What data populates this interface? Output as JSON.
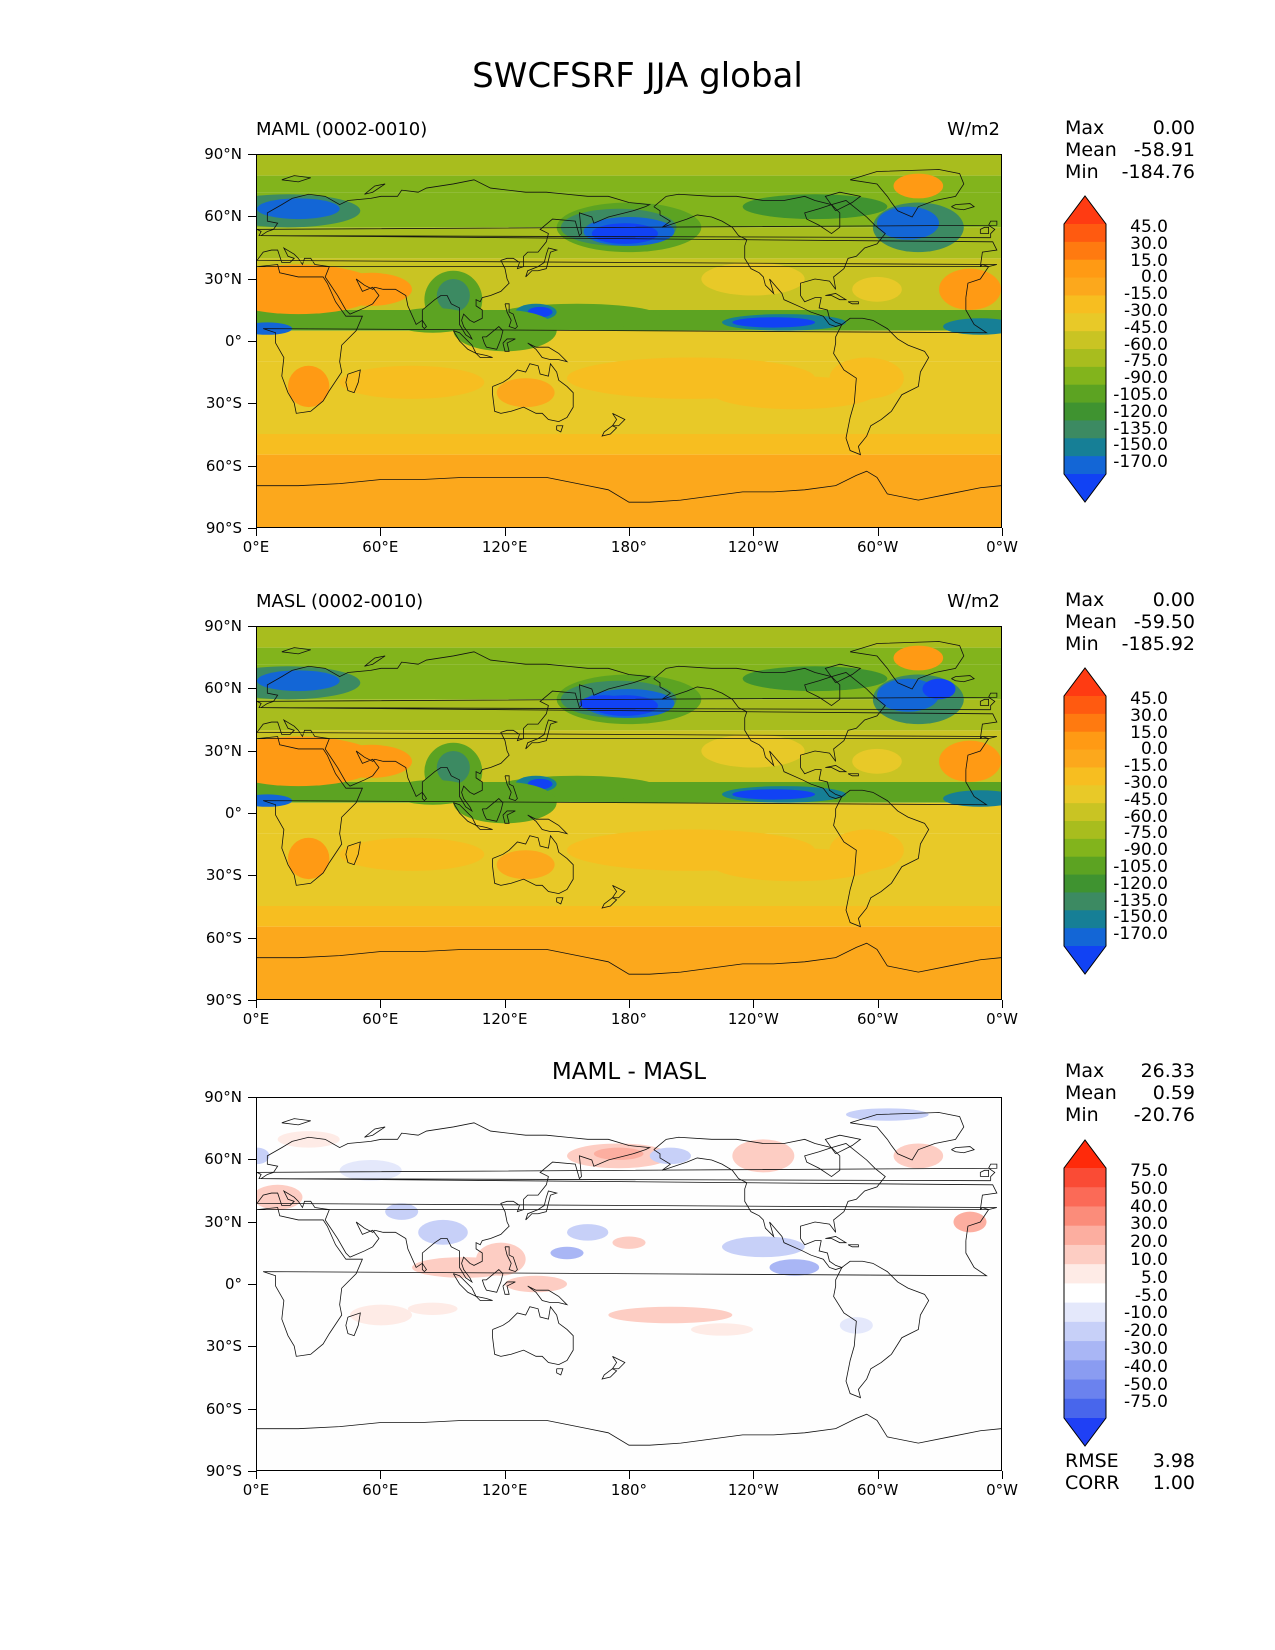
{
  "title": "SWCFSRF JJA global",
  "lat_ticks": [
    "90°N",
    "60°N",
    "30°N",
    "0°",
    "30°S",
    "60°S",
    "90°S"
  ],
  "lon_ticks": [
    "0°E",
    "60°E",
    "120°E",
    "180°",
    "120°W",
    "60°W",
    "0°W"
  ],
  "panels": [
    {
      "left_title": "MAML (0002-0010)",
      "right_title": "W/m2",
      "center_title": "",
      "stats": [
        {
          "label": "Max",
          "value": "0.00"
        },
        {
          "label": "Mean",
          "value": "-58.91"
        },
        {
          "label": "Min",
          "value": "-184.76"
        }
      ]
    },
    {
      "left_title": "MASL (0002-0010)",
      "right_title": "W/m2",
      "center_title": "",
      "stats": [
        {
          "label": "Max",
          "value": "0.00"
        },
        {
          "label": "Mean",
          "value": "-59.50"
        },
        {
          "label": "Min",
          "value": "-185.92"
        }
      ]
    },
    {
      "left_title": "",
      "right_title": "",
      "center_title": "MAML - MASL",
      "stats": [
        {
          "label": "Max",
          "value": "26.33"
        },
        {
          "label": "Mean",
          "value": "0.59"
        },
        {
          "label": "Min",
          "value": "-20.76"
        }
      ],
      "extra_stats": [
        {
          "label": "RMSE",
          "value": "3.98"
        },
        {
          "label": "CORR",
          "value": "1.00"
        }
      ]
    }
  ],
  "colorbar_main": {
    "labels": [
      "45.0",
      "30.0",
      "15.0",
      "0.0",
      "-15.0",
      "-30.0",
      "-45.0",
      "-60.0",
      "-75.0",
      "-90.0",
      "-105.0",
      "-120.0",
      "-135.0",
      "-150.0",
      "-170.0"
    ],
    "colors": [
      "#ff3b12",
      "#ff5a10",
      "#ff7a10",
      "#ff9a14",
      "#fca81c",
      "#f7be20",
      "#e8c928",
      "#c9c423",
      "#a8bd1e",
      "#82b41c",
      "#5ca322",
      "#3f9330",
      "#3c8a62",
      "#167f96",
      "#1366d6",
      "#1142f4"
    ]
  },
  "colorbar_diff": {
    "labels": [
      "75.0",
      "50.0",
      "40.0",
      "30.0",
      "20.0",
      "10.0",
      "5.0",
      "-5.0",
      "-10.0",
      "-20.0",
      "-30.0",
      "-40.0",
      "-50.0",
      "-75.0"
    ],
    "colors": [
      "#ff2a0a",
      "#fa4b35",
      "#fb6a57",
      "#fb8c7a",
      "#fcaea0",
      "#fdcdc3",
      "#feebe6",
      "#ffffff",
      "#e4e8fb",
      "#c7d0f8",
      "#a9b6f5",
      "#8a9cf1",
      "#6b82ee",
      "#4866ec",
      "#1f40f5"
    ]
  }
}
